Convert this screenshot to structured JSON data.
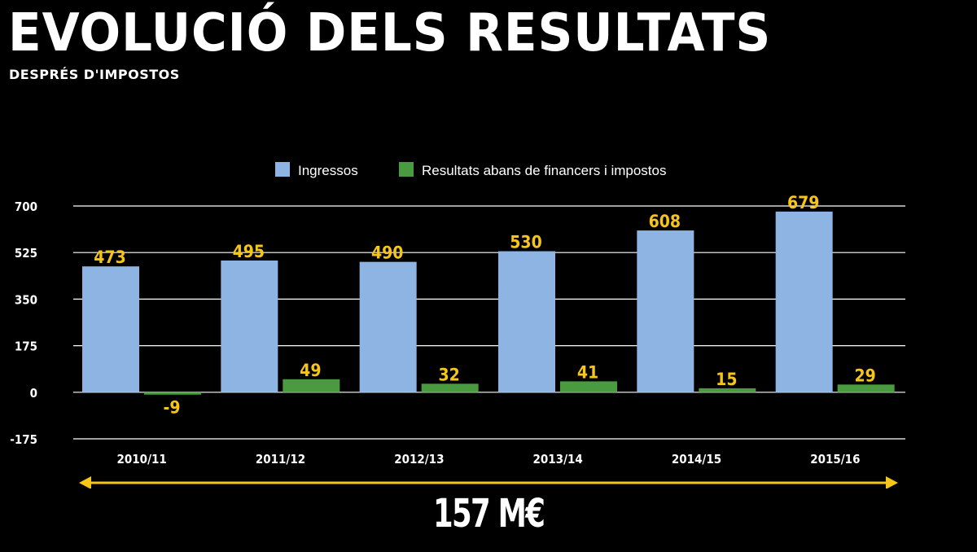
{
  "header": {
    "title": "EVOLUCIÓ DELS RESULTATS",
    "subtitle": "DESPRÉS D'IMPOSTOS"
  },
  "chart_data": {
    "type": "bar",
    "categories": [
      "2010/11",
      "2011/12",
      "2012/13",
      "2013/14",
      "2014/15",
      "2015/16"
    ],
    "series": [
      {
        "name": "Ingressos",
        "values": [
          473,
          495,
          490,
          530,
          608,
          679
        ],
        "color": "#8eb4e3"
      },
      {
        "name": "Resultats abans de financers i impostos",
        "values": [
          -9,
          49,
          32,
          41,
          15,
          29
        ],
        "color": "#4a9a3f"
      }
    ],
    "yticks": [
      "700",
      "525",
      "350",
      "175",
      "0",
      "-175"
    ],
    "ylim": [
      -175,
      700
    ],
    "grid": true,
    "legend_position": "top",
    "label_color": "#f5c518",
    "arrow_color": "#f5c518"
  },
  "footer": {
    "total": "157 M€"
  }
}
